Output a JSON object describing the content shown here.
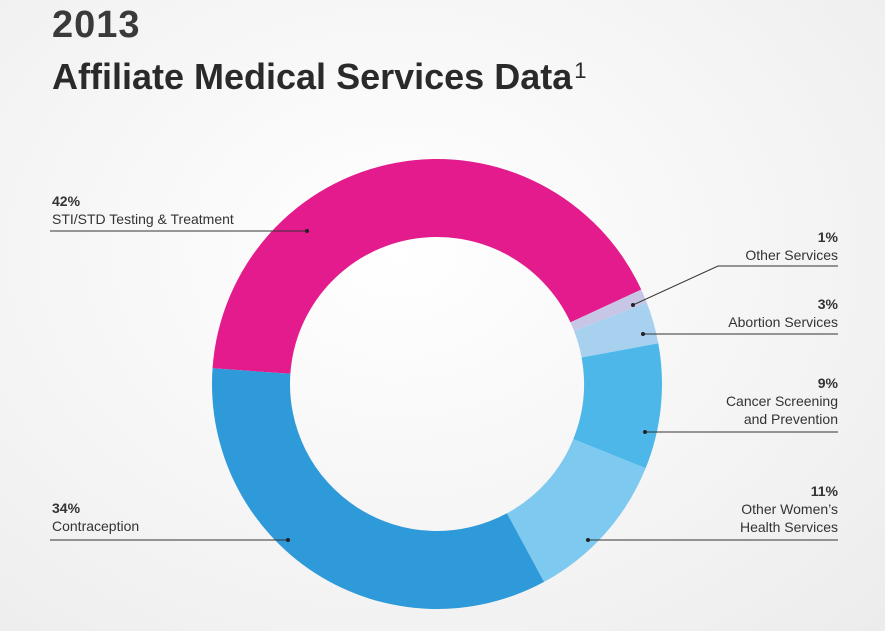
{
  "header": {
    "year": "2013",
    "title": "Affiliate Medical Services Data",
    "footnote": "1"
  },
  "chart_data": {
    "type": "pie",
    "subtype": "donut",
    "title": "2013 Affiliate Medical Services Data",
    "slices": [
      {
        "label": "STI/STD Testing & Treatment",
        "pct_label": "42%",
        "value": 42,
        "color": "#e31b8d"
      },
      {
        "label": "Other Services",
        "pct_label": "1%",
        "value": 1,
        "color": "#c8c6e6"
      },
      {
        "label": "Abortion Services",
        "pct_label": "3%",
        "value": 3,
        "color": "#a8d1ef"
      },
      {
        "label": "Cancer Screening and Prevention",
        "label_lines": [
          "Cancer Screening",
          "and Prevention"
        ],
        "pct_label": "9%",
        "value": 9,
        "color": "#4db7e9"
      },
      {
        "label": "Other Women's Health Services",
        "label_lines": [
          "Other Women’s",
          "Health Services"
        ],
        "pct_label": "11%",
        "value": 11,
        "color": "#7ec9f0"
      },
      {
        "label": "Contraception",
        "pct_label": "34%",
        "value": 34,
        "color": "#2f9ad9"
      }
    ]
  }
}
